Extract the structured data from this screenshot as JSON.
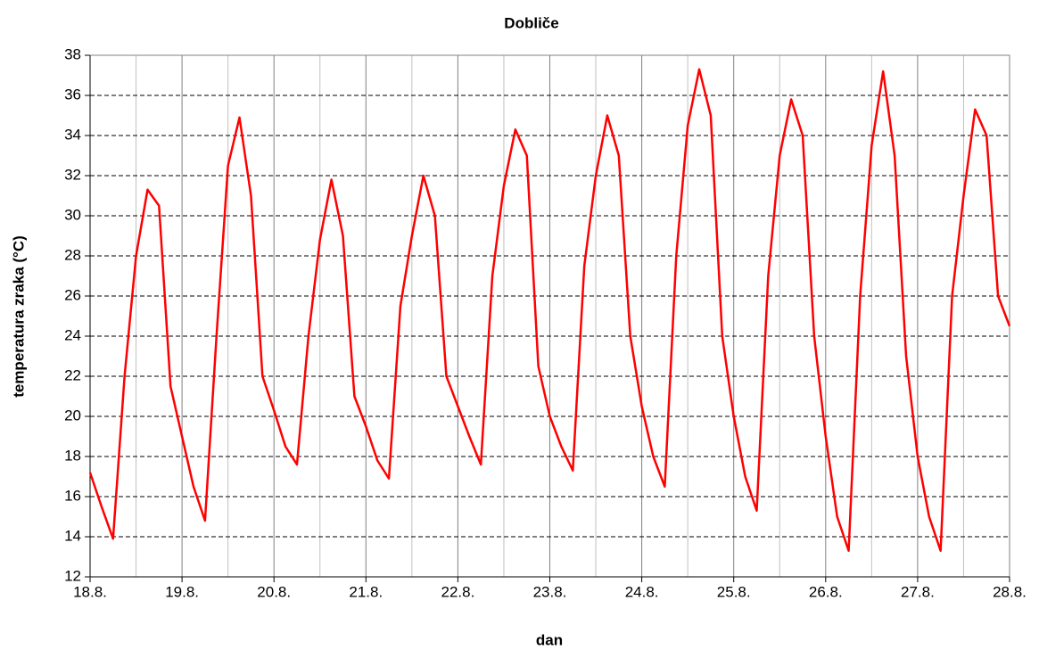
{
  "chart_data": {
    "type": "line",
    "title": "Dobliče",
    "xlabel": "dan",
    "ylabel": "temperatura zraka (°C)",
    "x": [
      18,
      18.125,
      18.25,
      18.375,
      18.5,
      18.625,
      18.75,
      18.875,
      19,
      19.125,
      19.25,
      19.375,
      19.5,
      19.625,
      19.75,
      19.875,
      20,
      20.125,
      20.25,
      20.375,
      20.5,
      20.625,
      20.75,
      20.875,
      21,
      21.125,
      21.25,
      21.375,
      21.5,
      21.625,
      21.75,
      21.875,
      22,
      22.125,
      22.25,
      22.375,
      22.5,
      22.625,
      22.75,
      22.875,
      23,
      23.125,
      23.25,
      23.375,
      23.5,
      23.625,
      23.75,
      23.875,
      24,
      24.125,
      24.25,
      24.375,
      24.5,
      24.625,
      24.75,
      24.875,
      25,
      25.125,
      25.25,
      25.375,
      25.5,
      25.625,
      25.75,
      25.875,
      26,
      26.125,
      26.25,
      26.375,
      26.5,
      26.625,
      26.75,
      26.875,
      27,
      27.125,
      27.25,
      27.375,
      27.5,
      27.625,
      27.75,
      27.875,
      28
    ],
    "series": [
      {
        "name": "Dobliče",
        "color": "#ff0000",
        "values": [
          17.2,
          15.5,
          13.9,
          22,
          28,
          31.3,
          30.5,
          21.5,
          19,
          16.5,
          14.8,
          24,
          32.5,
          34.9,
          31,
          22,
          20.3,
          18.5,
          17.6,
          24,
          28.8,
          31.8,
          29,
          21,
          19.5,
          17.8,
          16.9,
          25.5,
          29,
          32,
          30,
          22,
          20.5,
          19,
          17.6,
          27,
          31.5,
          34.3,
          33,
          22.5,
          20,
          18.5,
          17.3,
          27.5,
          32,
          35,
          33,
          24,
          20.5,
          18,
          16.5,
          28,
          34.5,
          37.3,
          35,
          24,
          20,
          17,
          15.3,
          27,
          33,
          35.8,
          34,
          24,
          19,
          15,
          13.3,
          26,
          33.5,
          37.2,
          33,
          23,
          18,
          15,
          13.3,
          26,
          31,
          35.3,
          34,
          26,
          24.5
        ]
      }
    ],
    "xlim": [
      18,
      28
    ],
    "xticks": [
      {
        "value": 18,
        "label": "18.8."
      },
      {
        "value": 19,
        "label": "19.8."
      },
      {
        "value": 20,
        "label": "20.8."
      },
      {
        "value": 21,
        "label": "21.8."
      },
      {
        "value": 22,
        "label": "22.8."
      },
      {
        "value": 23,
        "label": "23.8."
      },
      {
        "value": 24,
        "label": "24.8."
      },
      {
        "value": 25,
        "label": "25.8."
      },
      {
        "value": 26,
        "label": "26.8."
      },
      {
        "value": 27,
        "label": "27.8."
      },
      {
        "value": 28,
        "label": "28.8."
      }
    ],
    "ylim": [
      12,
      38
    ],
    "yticks": [
      12,
      14,
      16,
      18,
      20,
      22,
      24,
      26,
      28,
      30,
      32,
      34,
      36,
      38
    ],
    "grid": true
  }
}
